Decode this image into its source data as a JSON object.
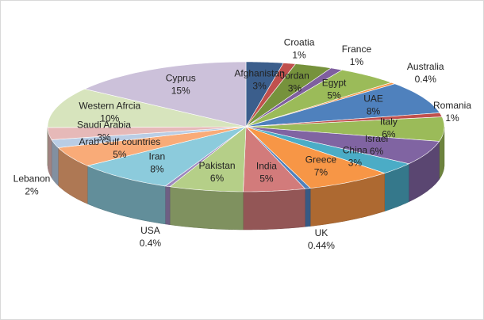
{
  "chart_data": {
    "type": "pie3d",
    "categories": [
      "Afghanistan",
      "Croatia",
      "Jordan",
      "France",
      "Egypt",
      "Australia",
      "UAE",
      "Romania",
      "Italy",
      "Israel",
      "China",
      "Greece",
      "UK",
      "India",
      "Pakistan",
      "USA",
      "Iran",
      "Arab Gulf countries",
      "Lebanon",
      "Saudi Arabia",
      "Western Afrcia",
      "Cyprus"
    ],
    "values": [
      3,
      1,
      3,
      1,
      5,
      0.4,
      8,
      1,
      6,
      6,
      3,
      7,
      0.44,
      5,
      6,
      0.4,
      8,
      5,
      2,
      3,
      10,
      15
    ],
    "value_labels": [
      "3%",
      "1%",
      "3%",
      "1%",
      "5%",
      "0.4%",
      "8%",
      "1%",
      "6%",
      "6%",
      "3%",
      "7%",
      "0.44%",
      "5%",
      "6%",
      "0.4%",
      "8%",
      "5%",
      "2%",
      "3%",
      "10%",
      "15%"
    ],
    "colors": [
      "#3b5e8c",
      "#c0504d",
      "#76923c",
      "#7f5f9f",
      "#9bbb59",
      "#f79646",
      "#4f81bd",
      "#c0504d",
      "#9bbb59",
      "#8064a2",
      "#4bacc6",
      "#f79646",
      "#4f81bd",
      "#d27b7b",
      "#b5cf88",
      "#9d87bd",
      "#8ccbdc",
      "#f9ab78",
      "#b9cde5",
      "#e6b9b8",
      "#d7e4bd",
      "#ccc1da"
    ]
  }
}
